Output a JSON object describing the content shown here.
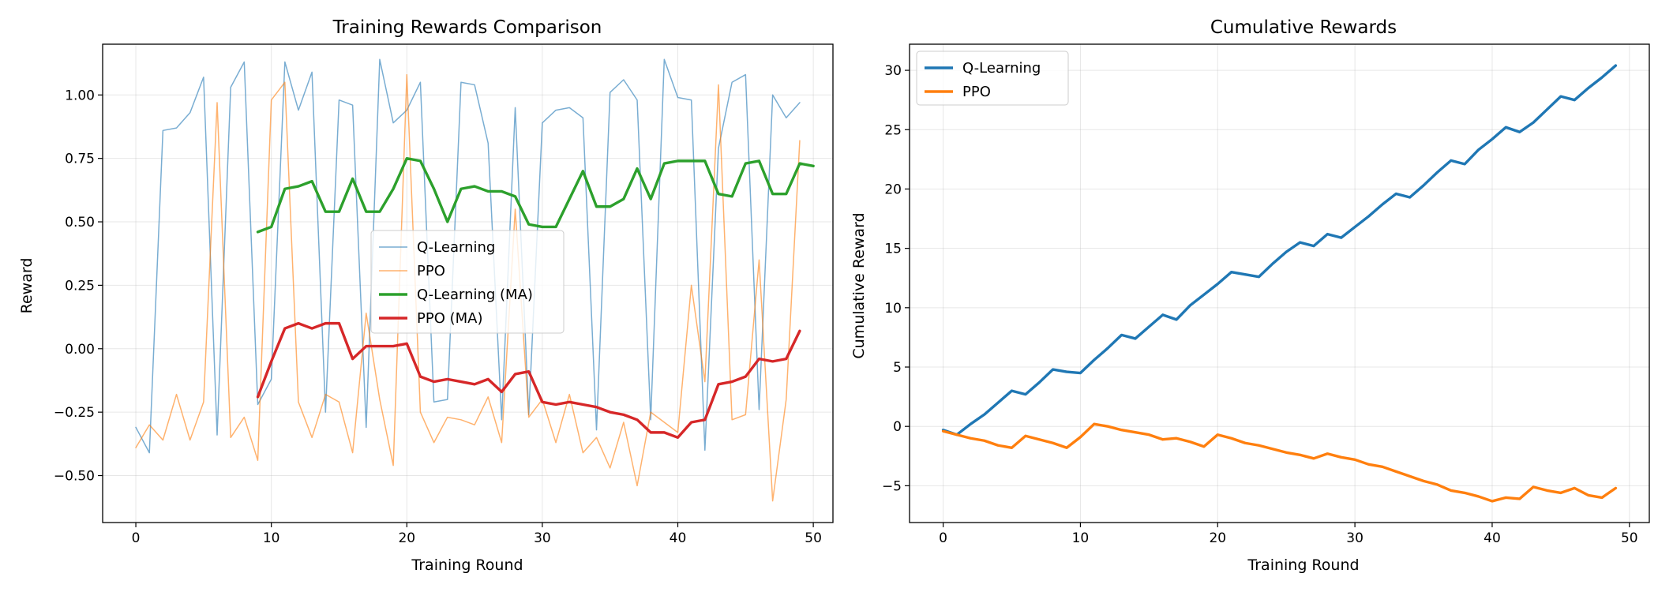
{
  "colors": {
    "q_learning": "#1f77b4",
    "ppo": "#ff7f0e",
    "q_learning_ma": "#2ca02c",
    "ppo_ma": "#d62728"
  },
  "chart_data": [
    {
      "type": "line",
      "title": "Training Rewards Comparison",
      "xlabel": "Training Round",
      "ylabel": "Reward",
      "xlim": [
        -2.45,
        51.45
      ],
      "ylim": [
        -0.685,
        1.2
      ],
      "x_ticks": [
        0,
        10,
        20,
        30,
        40,
        50
      ],
      "y_ticks": [
        -0.5,
        -0.25,
        0.0,
        0.25,
        0.5,
        0.75,
        1.0
      ],
      "y_tick_labels": [
        "−0.50",
        "−0.25",
        "0.00",
        "0.25",
        "0.50",
        "0.75",
        "1.00"
      ],
      "grid": true,
      "legend_position": "center",
      "series": [
        {
          "name": "Q-Learning",
          "color_key": "q_learning",
          "alpha": 0.6,
          "width": 1.5,
          "x_start": 0,
          "values": [
            -0.31,
            -0.41,
            0.86,
            0.87,
            0.93,
            1.07,
            -0.34,
            1.03,
            1.13,
            -0.22,
            -0.12,
            1.13,
            0.94,
            1.09,
            -0.25,
            0.98,
            0.96,
            -0.31,
            1.14,
            0.89,
            0.94,
            1.05,
            -0.21,
            -0.2,
            1.05,
            1.04,
            0.81,
            -0.28,
            0.95,
            -0.26,
            0.89,
            0.94,
            0.95,
            0.91,
            -0.32,
            1.01,
            1.06,
            0.98,
            -0.28,
            1.14,
            0.99,
            0.98,
            -0.4,
            0.79,
            1.05,
            1.08,
            -0.24,
            1.0,
            0.91,
            0.97
          ]
        },
        {
          "name": "PPO",
          "color_key": "ppo",
          "alpha": 0.6,
          "width": 1.5,
          "x_start": 0,
          "values": [
            -0.39,
            -0.3,
            -0.36,
            -0.18,
            -0.36,
            -0.21,
            0.97,
            -0.35,
            -0.27,
            -0.44,
            0.98,
            1.05,
            -0.21,
            -0.35,
            -0.18,
            -0.21,
            -0.41,
            0.14,
            -0.2,
            -0.46,
            1.08,
            -0.25,
            -0.37,
            -0.27,
            -0.28,
            -0.3,
            -0.19,
            -0.37,
            0.55,
            -0.27,
            -0.2,
            -0.37,
            -0.18,
            -0.41,
            -0.35,
            -0.47,
            -0.29,
            -0.54,
            -0.25,
            -0.29,
            -0.33,
            0.25,
            -0.13,
            1.04,
            -0.28,
            -0.26,
            0.35,
            -0.6,
            -0.2,
            0.82
          ]
        },
        {
          "name": "Q-Learning (MA)",
          "color_key": "q_learning_ma",
          "alpha": 1.0,
          "width": 3.4,
          "x_start": 9,
          "values": [
            0.46,
            0.48,
            0.63,
            0.64,
            0.66,
            0.54,
            0.54,
            0.67,
            0.54,
            0.54,
            0.63,
            0.75,
            0.74,
            0.63,
            0.5,
            0.63,
            0.64,
            0.62,
            0.62,
            0.6,
            0.49,
            0.48,
            0.48,
            0.59,
            0.7,
            0.56,
            0.56,
            0.59,
            0.71,
            0.59,
            0.73,
            0.74,
            0.74,
            0.74,
            0.61,
            0.6,
            0.73,
            0.74,
            0.61,
            0.61,
            0.73,
            0.72
          ]
        },
        {
          "name": "PPO (MA)",
          "color_key": "ppo_ma",
          "alpha": 1.0,
          "width": 3.4,
          "x_start": 9,
          "values": [
            -0.19,
            -0.05,
            0.08,
            0.1,
            0.08,
            0.1,
            0.1,
            -0.04,
            0.01,
            0.01,
            0.01,
            0.02,
            -0.11,
            -0.13,
            -0.12,
            -0.13,
            -0.14,
            -0.12,
            -0.17,
            -0.1,
            -0.09,
            -0.21,
            -0.22,
            -0.21,
            -0.22,
            -0.23,
            -0.25,
            -0.26,
            -0.28,
            -0.33,
            -0.33,
            -0.35,
            -0.29,
            -0.28,
            -0.14,
            -0.13,
            -0.11,
            -0.04,
            -0.05,
            -0.04,
            0.07
          ]
        }
      ]
    },
    {
      "type": "line",
      "title": "Cumulative Rewards",
      "xlabel": "Training Round",
      "ylabel": "Cumulative Reward",
      "xlim": [
        -2.45,
        51.45
      ],
      "ylim": [
        -8.1,
        32.2
      ],
      "x_ticks": [
        0,
        10,
        20,
        30,
        40,
        50
      ],
      "y_ticks": [
        -5,
        0,
        5,
        10,
        15,
        20,
        25,
        30
      ],
      "y_tick_labels": [
        "−5",
        "0",
        "5",
        "10",
        "15",
        "20",
        "25",
        "30"
      ],
      "grid": true,
      "legend_position": "upper-left",
      "series": [
        {
          "name": "Q-Learning",
          "color_key": "q_learning",
          "alpha": 1.0,
          "width": 3.4,
          "x_start": 0,
          "values": [
            -0.3,
            -0.7,
            0.2,
            1.0,
            2.0,
            3.0,
            2.7,
            3.7,
            4.8,
            4.6,
            4.5,
            5.6,
            6.6,
            7.7,
            7.4,
            8.4,
            9.4,
            9.0,
            10.2,
            11.1,
            12.0,
            13.0,
            12.8,
            12.6,
            13.7,
            14.7,
            15.5,
            15.2,
            16.2,
            15.9,
            16.8,
            17.7,
            18.7,
            19.6,
            19.3,
            20.3,
            21.4,
            22.4,
            22.1,
            23.3,
            24.2,
            25.2,
            24.8,
            25.6,
            26.7,
            27.8,
            27.5,
            28.5,
            29.4,
            30.4
          ]
        },
        {
          "name": "PPO",
          "color_key": "ppo",
          "alpha": 1.0,
          "width": 3.4,
          "x_start": 0,
          "values": [
            -0.4,
            -0.7,
            -1.0,
            -1.2,
            -1.6,
            -1.8,
            -0.8,
            -1.1,
            -1.4,
            -1.8,
            -0.9,
            0.2,
            0.0,
            -0.3,
            -0.5,
            -0.7,
            -1.1,
            -1.0,
            -1.3,
            -1.7,
            -0.7,
            -1.0,
            -1.4,
            -1.6,
            -1.9,
            -2.2,
            -2.4,
            -2.7,
            -2.3,
            -2.6,
            -2.8,
            -3.2,
            -3.4,
            -3.8,
            -4.2,
            -4.6,
            -4.9,
            -5.4,
            -5.6,
            -5.9,
            -6.3,
            -6.0,
            -6.1,
            -5.1,
            -5.4,
            -5.6,
            -5.2,
            -5.8,
            -6.0,
            -5.2
          ]
        }
      ]
    }
  ]
}
